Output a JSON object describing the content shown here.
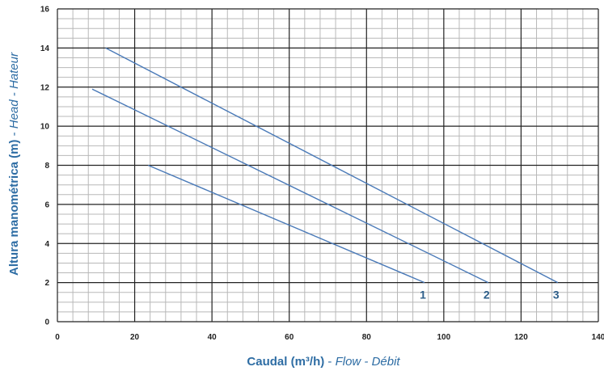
{
  "chart_data": {
    "type": "line",
    "xlim": [
      0,
      140
    ],
    "ylim": [
      0,
      16
    ],
    "x_ticks": [
      "0",
      "20",
      "40",
      "60",
      "80",
      "100",
      "120",
      "140"
    ],
    "y_ticks": [
      "0",
      "2",
      "4",
      "6",
      "8",
      "10",
      "12",
      "14",
      "16"
    ],
    "x_major_step": 20,
    "y_major_step": 2,
    "x_minor_step": 4,
    "y_minor_step": 0.5,
    "grid": true,
    "xlabel": {
      "main": "Caudal (m³/h)",
      "sep": " - ",
      "alt": "Flow - Débit"
    },
    "ylabel": {
      "main": "Altura manométrica (m)",
      "sep": " - ",
      "alt": "Head - Hateur"
    },
    "series": [
      {
        "label": "1",
        "x": [
          23.5,
          95
        ],
        "y": [
          8,
          2
        ]
      },
      {
        "label": "2",
        "x": [
          9,
          111.5
        ],
        "y": [
          11.9,
          2
        ]
      },
      {
        "label": "3",
        "x": [
          12.5,
          129.5
        ],
        "y": [
          14,
          2
        ]
      }
    ],
    "colors": {
      "line": "#4a7ab8",
      "label": "#2e5f8a",
      "axis_title": "#2e6da4",
      "major_grid": "#222222",
      "minor_grid": "#b8b8b8"
    }
  }
}
